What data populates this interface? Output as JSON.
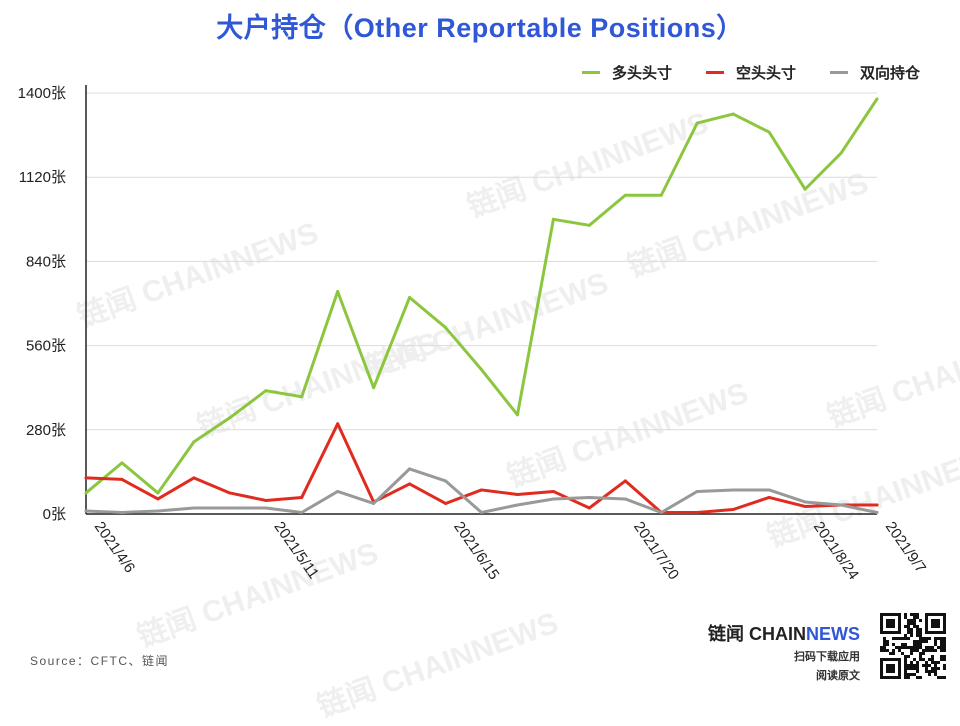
{
  "title": "大户持仓（Other Reportable Positions）",
  "source": "Source：CFTC、链闻",
  "brand": {
    "name_prefix": "链闻 CHAIN",
    "name_suffix": "NEWS",
    "line1": "扫码下载应用",
    "line2": "阅读原文"
  },
  "watermark_text": "链闻 CHAINNEWS",
  "colors": {
    "title": "#2f57d6",
    "long": "#8cc63f",
    "short": "#e02b20",
    "spread": "#999999"
  },
  "chart_data": {
    "type": "line",
    "title": "大户持仓（Other Reportable Positions）",
    "x": [
      "2021/4/6",
      "2021/4/13",
      "2021/4/20",
      "2021/4/27",
      "2021/5/4",
      "2021/5/11",
      "2021/5/18",
      "2021/5/25",
      "2021/6/1",
      "2021/6/8",
      "2021/6/15",
      "2021/6/22",
      "2021/6/29",
      "2021/7/6",
      "2021/7/13",
      "2021/7/20",
      "2021/7/27",
      "2021/8/3",
      "2021/8/10",
      "2021/8/17",
      "2021/8/24",
      "2021/8/31",
      "2021/9/7"
    ],
    "x_tick_labels": [
      "2021/4/6",
      "2021/5/11",
      "2021/6/15",
      "2021/7/20",
      "2021/8/24",
      "2021/9/7"
    ],
    "series": [
      {
        "name": "多头头寸",
        "color": "#8cc63f",
        "values": [
          70,
          170,
          70,
          240,
          320,
          410,
          390,
          740,
          420,
          720,
          620,
          480,
          330,
          980,
          960,
          1060,
          1060,
          1300,
          1330,
          1270,
          1080,
          1200,
          1380
        ]
      },
      {
        "name": "空头头寸",
        "color": "#e02b20",
        "values": [
          120,
          115,
          50,
          120,
          70,
          45,
          55,
          300,
          40,
          100,
          35,
          80,
          65,
          75,
          20,
          110,
          5,
          5,
          15,
          55,
          25,
          30,
          30
        ]
      },
      {
        "name": "双向持仓",
        "color": "#999999",
        "values": [
          10,
          5,
          10,
          20,
          20,
          20,
          5,
          75,
          35,
          150,
          110,
          5,
          30,
          50,
          55,
          50,
          5,
          75,
          80,
          80,
          40,
          30,
          5
        ]
      }
    ],
    "ylim": [
      0,
      1400
    ],
    "y_ticks": [
      0,
      280,
      560,
      840,
      1120,
      1400
    ],
    "y_tick_labels": [
      "0张",
      "280张",
      "560张",
      "840张",
      "1120张",
      "1400张"
    ],
    "grid": true,
    "legend": "top-right"
  }
}
